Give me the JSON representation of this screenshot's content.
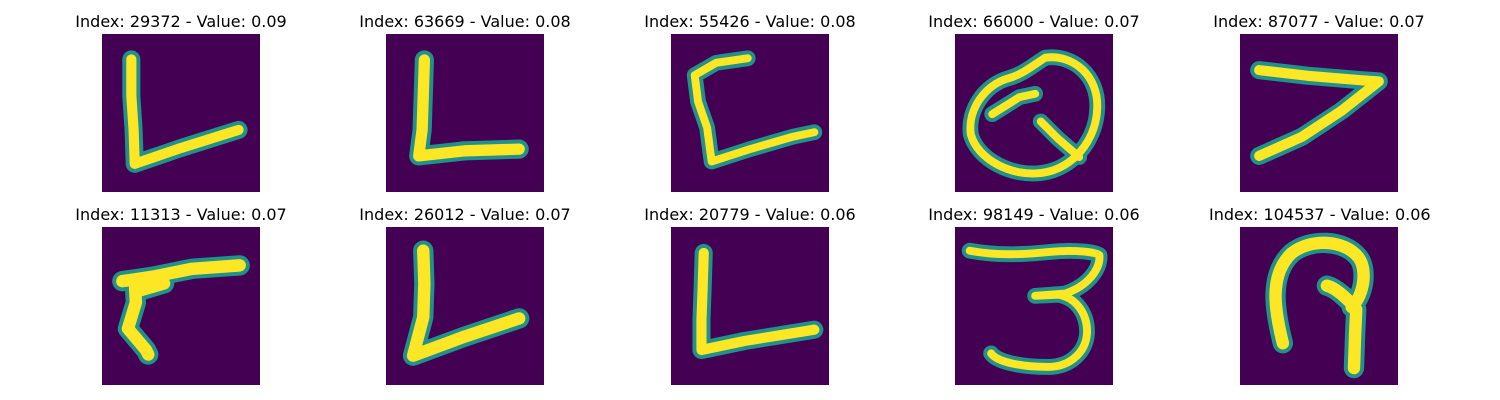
{
  "figure": {
    "colors": {
      "background": "#440154",
      "mid": "#21918c",
      "stroke": "#fde725"
    },
    "panels": [
      {
        "title": "Index: 29372 - Value: 0.09"
      },
      {
        "title": "Index: 63669 - Value: 0.08"
      },
      {
        "title": "Index: 55426 - Value: 0.08"
      },
      {
        "title": "Index: 66000 - Value: 0.07"
      },
      {
        "title": "Index: 87077 - Value: 0.07"
      },
      {
        "title": "Index: 11313 - Value: 0.07"
      },
      {
        "title": "Index: 26012 - Value: 0.07"
      },
      {
        "title": "Index: 20779 - Value: 0.06"
      },
      {
        "title": "Index: 98149 - Value: 0.06"
      },
      {
        "title": "Index: 104537 - Value: 0.06"
      }
    ]
  }
}
